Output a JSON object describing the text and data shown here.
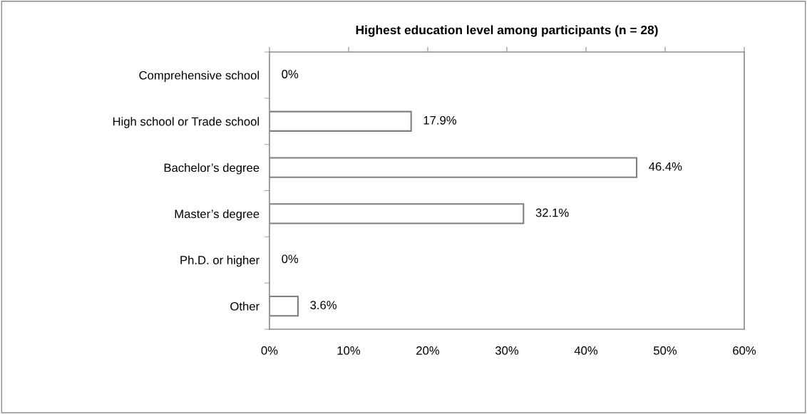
{
  "chart_data": {
    "type": "bar",
    "orientation": "horizontal",
    "title": "Highest education level among participants (n = 28)",
    "categories": [
      "Comprehensive school",
      "High school or Trade school",
      "Bachelor’s degree",
      "Master’s degree",
      "Ph.D. or higher",
      "Other"
    ],
    "values": [
      0,
      17.9,
      46.4,
      32.1,
      0,
      3.6
    ],
    "value_labels": [
      "0%",
      "17.9%",
      "46.4%",
      "32.1%",
      "0%",
      "3.6%"
    ],
    "color": "#ffffff",
    "xlim": [
      0,
      60
    ],
    "xticks": [
      {
        "value": 0,
        "label": "0%"
      },
      {
        "value": 10,
        "label": "10%"
      },
      {
        "value": 20,
        "label": "20%"
      },
      {
        "value": 30,
        "label": "30%"
      },
      {
        "value": 40,
        "label": "40%"
      },
      {
        "value": 50,
        "label": "50%"
      },
      {
        "value": 60,
        "label": "60%"
      }
    ],
    "grid": false,
    "legend": false
  }
}
